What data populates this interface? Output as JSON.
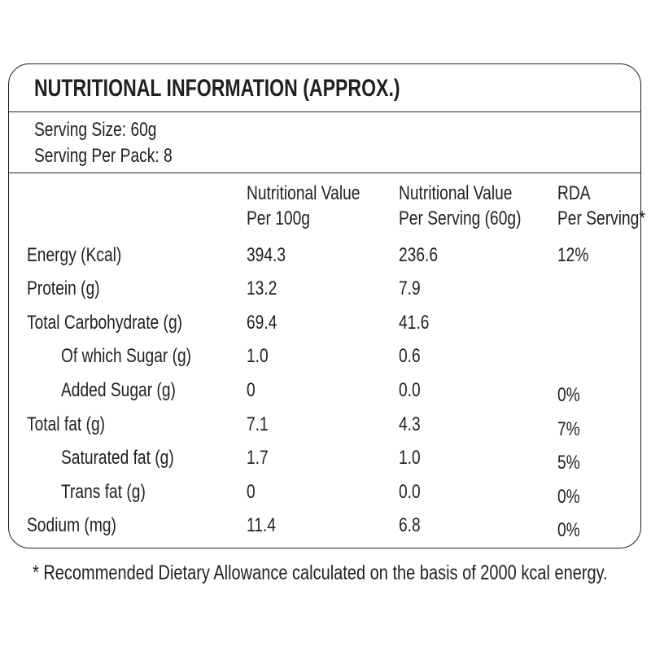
{
  "header": {
    "title": "NUTRITIONAL INFORMATION (APPROX.)"
  },
  "serving": {
    "size": "Serving Size: 60g",
    "per_pack": "Serving Per Pack: 8"
  },
  "table": {
    "columns": [
      [
        "Nutritional Value",
        "Per 100g"
      ],
      [
        "Nutritional Value",
        "Per Serving (60g)"
      ],
      [
        "RDA",
        "Per Serving*"
      ]
    ],
    "rows": [
      {
        "label": "Energy (Kcal)",
        "per100g": "394.3",
        "perServing": "236.6",
        "rda": "12%"
      },
      {
        "label": "Protein (g)",
        "per100g": "13.2",
        "perServing": "7.9"
      },
      {
        "label": "Total Carbohydrate (g)",
        "per100g": "69.4",
        "perServing": "41.6"
      },
      {
        "label": "Of which Sugar (g)",
        "per100g": "1.0",
        "perServing": "0.6"
      },
      {
        "label": "Added Sugar (g)",
        "per100g": "0",
        "perServing": "0.0",
        "rda": "0%"
      },
      {
        "label": "Total fat (g)",
        "per100g": "7.1",
        "perServing": "4.3",
        "rda": "7%"
      },
      {
        "label": "Saturated fat (g)",
        "per100g": "1.7",
        "perServing": "1.0",
        "rda": "5%"
      },
      {
        "label": "Trans fat (g)",
        "per100g": "0",
        "perServing": "0.0",
        "rda": "0%"
      },
      {
        "label": "Sodium (mg)",
        "per100g": "11.4",
        "perServing": "6.8",
        "rda": "0%"
      }
    ]
  },
  "footnote": "* Recommended Dietary Allowance calculated on the basis of 2000 kcal energy."
}
